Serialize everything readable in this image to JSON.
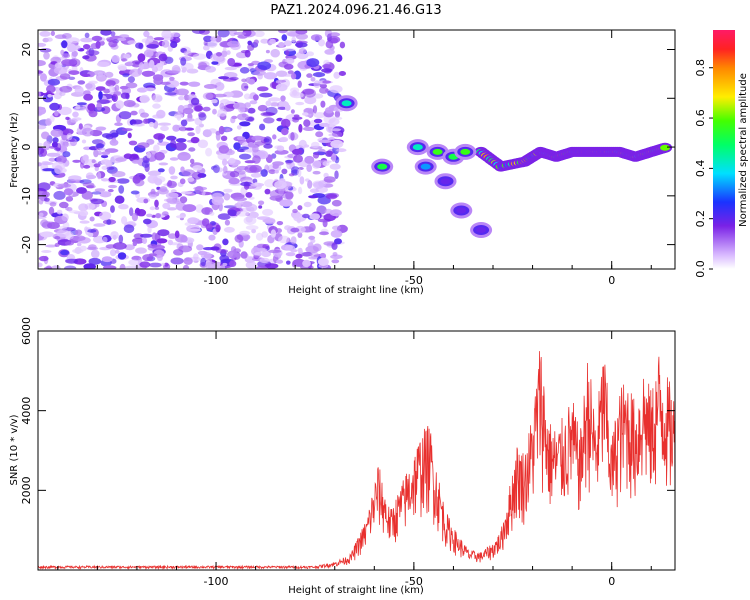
{
  "title": "PAZ1.2024.096.21.46.G13",
  "colors": {
    "snr_line": "#e8302e",
    "frame": "#000000",
    "spectro": "#7a22e6"
  },
  "chart_data": [
    {
      "type": "heatmap",
      "name": "spectrogram",
      "xlabel": "Height of straight line (km)",
      "ylabel": "Frequency (Hz)",
      "xlim": [
        -145,
        16
      ],
      "ylim": [
        -25,
        24
      ],
      "xticks": [
        "-100",
        "-50",
        "0"
      ],
      "xtick_values": [
        -100,
        -50,
        0
      ],
      "yticks": [
        "-20",
        "-10",
        "0",
        "10",
        "20"
      ],
      "ytick_values": [
        -20,
        -10,
        0,
        10,
        20
      ],
      "noise_region_x": [
        -145,
        -68
      ],
      "signal_track": [
        {
          "x": -33,
          "y": -1
        },
        {
          "x": -28,
          "y": -4
        },
        {
          "x": -22,
          "y": -3
        },
        {
          "x": -18,
          "y": -1
        },
        {
          "x": -14,
          "y": -2
        },
        {
          "x": -10,
          "y": -1
        },
        {
          "x": -6,
          "y": -1
        },
        {
          "x": -2,
          "y": -1
        },
        {
          "x": 2,
          "y": -1
        },
        {
          "x": 6,
          "y": -2
        },
        {
          "x": 10,
          "y": -1
        },
        {
          "x": 14,
          "y": 0
        }
      ],
      "features": [
        {
          "x": -67,
          "y": 9,
          "value": 0.45
        },
        {
          "x": -58,
          "y": -4,
          "value": 0.55
        },
        {
          "x": -49,
          "y": 0,
          "value": 0.45
        },
        {
          "x": -47,
          "y": -4,
          "value": 0.35
        },
        {
          "x": -44,
          "y": -1,
          "value": 0.6
        },
        {
          "x": -40,
          "y": -2,
          "value": 0.55
        },
        {
          "x": -37,
          "y": -1,
          "value": 0.6
        },
        {
          "x": -42,
          "y": -7,
          "value": 0.2
        },
        {
          "x": -38,
          "y": -13,
          "value": 0.2
        },
        {
          "x": -33,
          "y": -17,
          "value": 0.2
        }
      ]
    },
    {
      "type": "colorbar",
      "label": "Normalized spectral amplitude",
      "range": [
        0,
        0.95
      ],
      "ticks": [
        "0.0",
        "0.2",
        "0.4",
        "0.6",
        "0.8"
      ],
      "tick_values": [
        0.0,
        0.2,
        0.4,
        0.6,
        0.8
      ]
    },
    {
      "type": "line",
      "name": "snr",
      "xlabel": "Height of straight line (km)",
      "ylabel": "SNR (10 * v/v)",
      "xlim": [
        -145,
        16
      ],
      "ylim": [
        0,
        6000
      ],
      "xticks": [
        "-100",
        "-50",
        "0"
      ],
      "xtick_values": [
        -100,
        -50,
        0
      ],
      "yticks": [
        "2000",
        "4000",
        "6000"
      ],
      "ytick_values": [
        2000,
        4000,
        6000
      ],
      "envelope": [
        {
          "x": -145,
          "y": 100
        },
        {
          "x": -75,
          "y": 100
        },
        {
          "x": -70,
          "y": 200
        },
        {
          "x": -66,
          "y": 400
        },
        {
          "x": -62,
          "y": 1300
        },
        {
          "x": -59,
          "y": 2700
        },
        {
          "x": -56,
          "y": 1500
        },
        {
          "x": -53,
          "y": 2200
        },
        {
          "x": -50,
          "y": 3000
        },
        {
          "x": -48,
          "y": 3500
        },
        {
          "x": -46,
          "y": 3700
        },
        {
          "x": -44,
          "y": 2500
        },
        {
          "x": -42,
          "y": 1500
        },
        {
          "x": -39,
          "y": 900
        },
        {
          "x": -36,
          "y": 500
        },
        {
          "x": -33,
          "y": 450
        },
        {
          "x": -30,
          "y": 700
        },
        {
          "x": -28,
          "y": 1000
        },
        {
          "x": -26,
          "y": 2000
        },
        {
          "x": -24,
          "y": 3200
        },
        {
          "x": -22,
          "y": 3000
        },
        {
          "x": -20,
          "y": 4000
        },
        {
          "x": -18,
          "y": 5900
        },
        {
          "x": -16,
          "y": 3800
        },
        {
          "x": -14,
          "y": 3600
        },
        {
          "x": -12,
          "y": 3900
        },
        {
          "x": -10,
          "y": 4400
        },
        {
          "x": -8,
          "y": 3400
        },
        {
          "x": -6,
          "y": 5500
        },
        {
          "x": -4,
          "y": 3800
        },
        {
          "x": -2,
          "y": 5700
        },
        {
          "x": 0,
          "y": 3300
        },
        {
          "x": 2,
          "y": 4600
        },
        {
          "x": 4,
          "y": 4900
        },
        {
          "x": 6,
          "y": 4200
        },
        {
          "x": 8,
          "y": 5200
        },
        {
          "x": 10,
          "y": 4500
        },
        {
          "x": 12,
          "y": 5600
        },
        {
          "x": 14,
          "y": 4900
        },
        {
          "x": 16,
          "y": 4400
        }
      ]
    }
  ]
}
